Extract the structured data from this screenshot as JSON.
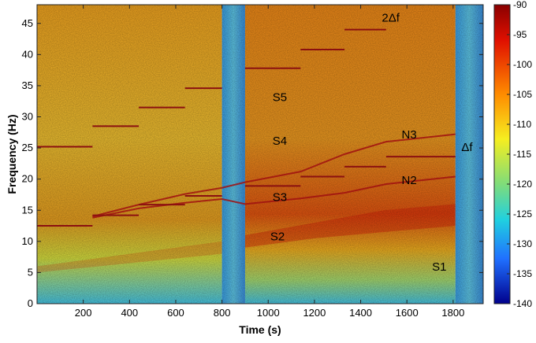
{
  "chart_data": {
    "type": "heatmap",
    "xlabel": "Time (s)",
    "ylabel": "Frequency (Hz)",
    "xlim": [
      0,
      1930
    ],
    "ylim": [
      0,
      48
    ],
    "x_ticks": [
      200,
      400,
      600,
      800,
      1000,
      1200,
      1400,
      1600,
      1800
    ],
    "y_ticks": [
      0,
      5,
      10,
      15,
      20,
      25,
      30,
      35,
      40,
      45
    ],
    "colorbar": {
      "range": [
        -140,
        -90
      ],
      "ticks": [
        -90,
        -95,
        -100,
        -105,
        -110,
        -115,
        -120,
        -125,
        -130,
        -135,
        -140
      ],
      "colormap": "jet"
    },
    "gaps": [
      {
        "start": 800,
        "end": 900
      },
      {
        "start": 1810,
        "end": 1930
      }
    ],
    "tone_lines": [
      {
        "x": [
          0,
          240
        ],
        "y": 25.2
      },
      {
        "x": [
          240,
          440
        ],
        "y": 28.5
      },
      {
        "x": [
          440,
          640
        ],
        "y": 31.5
      },
      {
        "x": [
          640,
          800
        ],
        "y": 34.6
      },
      {
        "x": [
          900,
          1140
        ],
        "y": 37.8
      },
      {
        "x": [
          1140,
          1330
        ],
        "y": 40.8
      },
      {
        "x": [
          1330,
          1510
        ],
        "y": 44.0
      },
      {
        "x": [
          0,
          240
        ],
        "y": 12.5
      },
      {
        "x": [
          240,
          440
        ],
        "y": 14.2
      },
      {
        "x": [
          440,
          640
        ],
        "y": 15.9
      },
      {
        "x": [
          640,
          800
        ],
        "y": 17.3
      },
      {
        "x": [
          900,
          1140
        ],
        "y": 18.9
      },
      {
        "x": [
          1140,
          1330
        ],
        "y": 20.4
      },
      {
        "x": [
          1330,
          1510
        ],
        "y": 22.0
      },
      {
        "x": [
          1510,
          1810
        ],
        "y": 23.6
      }
    ],
    "sweep_lines": [
      {
        "name": "N3",
        "points": [
          [
            240,
            14.0
          ],
          [
            440,
            15.9
          ],
          [
            640,
            17.6
          ],
          [
            800,
            18.6
          ],
          [
            900,
            19.5
          ],
          [
            1140,
            21.2
          ],
          [
            1330,
            24.0
          ],
          [
            1510,
            26.0
          ],
          [
            1810,
            27.2
          ]
        ]
      },
      {
        "name": "N2",
        "points": [
          [
            240,
            13.8
          ],
          [
            440,
            15.3
          ],
          [
            640,
            16.2
          ],
          [
            800,
            16.8
          ],
          [
            900,
            16.0
          ],
          [
            1140,
            16.9
          ],
          [
            1330,
            17.8
          ],
          [
            1510,
            19.2
          ],
          [
            1810,
            20.4
          ]
        ]
      }
    ],
    "annotations": [
      {
        "text": "2Δf",
        "x": 1530,
        "y": 45.3
      },
      {
        "text": "S5",
        "x": 1050,
        "y": 32.5
      },
      {
        "text": "S4",
        "x": 1050,
        "y": 25.5
      },
      {
        "text": "N3",
        "x": 1610,
        "y": 26.5
      },
      {
        "text": "Δf",
        "x": 1860,
        "y": 24.5
      },
      {
        "text": "N2",
        "x": 1610,
        "y": 19.2
      },
      {
        "text": "S3",
        "x": 1050,
        "y": 16.5
      },
      {
        "text": "S2",
        "x": 1040,
        "y": 10.2
      },
      {
        "text": "S1",
        "x": 1740,
        "y": 5.3
      }
    ]
  }
}
